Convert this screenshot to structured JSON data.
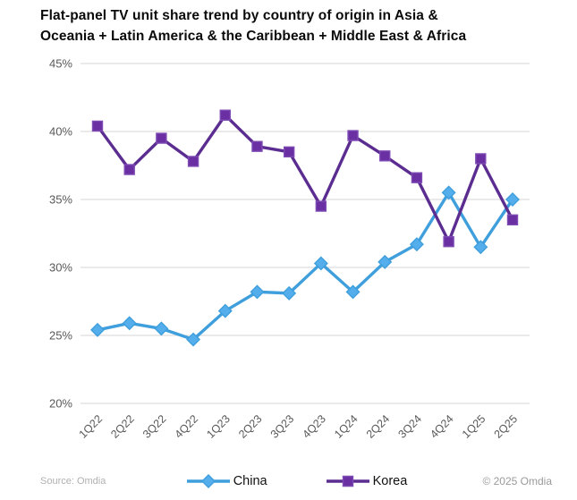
{
  "title": {
    "line1": "Flat-panel TV unit share trend by country of origin in Asia &",
    "line2": "Oceania + Latin America & the Caribbean + Middle East & Africa"
  },
  "chart_data": {
    "type": "line",
    "categories": [
      "1Q22",
      "2Q22",
      "3Q22",
      "4Q22",
      "1Q23",
      "2Q23",
      "3Q23",
      "4Q23",
      "1Q24",
      "2Q24",
      "3Q24",
      "4Q24",
      "1Q25",
      "2Q25"
    ],
    "series": [
      {
        "name": "China",
        "marker": "diamond",
        "line_color": "#3f9fdc",
        "marker_fill": "#55aeec",
        "marker_stroke": "#3f9fdc",
        "values": [
          25.4,
          25.9,
          25.5,
          24.7,
          26.8,
          28.2,
          28.1,
          30.3,
          28.2,
          30.4,
          31.7,
          35.5,
          31.5,
          35.0
        ]
      },
      {
        "name": "Korea",
        "marker": "square",
        "line_color": "#5c2d91",
        "marker_fill": "#6a2fa2",
        "marker_stroke": "#7e4bb4",
        "values": [
          40.4,
          37.2,
          39.5,
          37.8,
          41.2,
          38.9,
          38.5,
          34.5,
          39.7,
          38.2,
          36.6,
          31.9,
          38.0,
          33.5
        ]
      }
    ],
    "ylim": [
      20,
      45
    ],
    "yticks": [
      20,
      25,
      30,
      35,
      40,
      45
    ],
    "ytick_labels": [
      "20%",
      "25%",
      "30%",
      "35%",
      "40%",
      "45%"
    ],
    "grid": "horizontal-only",
    "gridline_color": "#dedede",
    "tick_label_color": "#595959",
    "legend_position": "bottom-center"
  },
  "footer": {
    "source": "Source: Omdia",
    "copyright": "© 2025 Omdia"
  }
}
